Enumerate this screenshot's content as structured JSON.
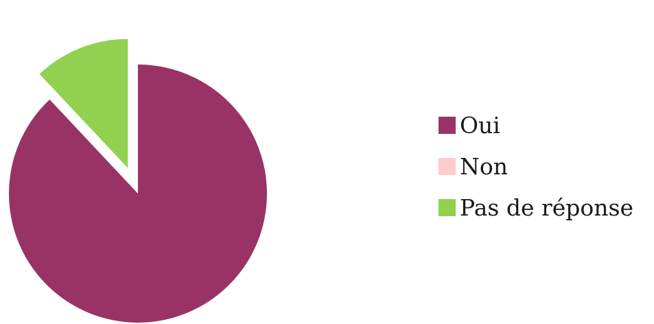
{
  "chart_data": {
    "type": "pie",
    "title": "",
    "legend_position": "right",
    "exploded": true,
    "slices": [
      {
        "label": "Oui",
        "value": 88,
        "color": "#993366"
      },
      {
        "label": "Non",
        "value": 0,
        "color": "#ffcccc"
      },
      {
        "label": "Pas de réponse",
        "value": 12,
        "color": "#92d050"
      }
    ]
  }
}
